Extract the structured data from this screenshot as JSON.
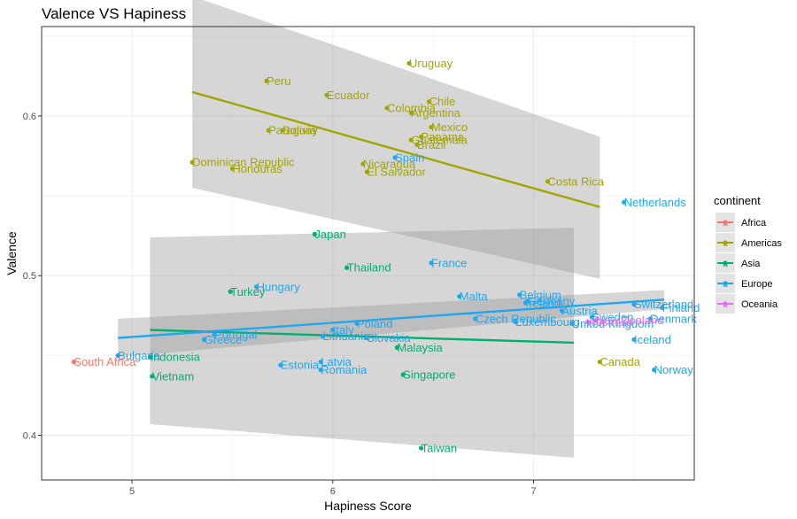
{
  "chart_data": {
    "type": "scatter",
    "title": "Valence VS Hapiness",
    "xlabel": "Hapiness Score",
    "ylabel": "Valence",
    "xlim": [
      4.55,
      7.8
    ],
    "ylim": [
      0.372,
      0.656
    ],
    "x_ticks": [
      5,
      6,
      7
    ],
    "x_tick_labels": [
      "5",
      "6",
      "7"
    ],
    "y_ticks": [
      0.4,
      0.5,
      0.6
    ],
    "y_tick_labels": [
      "0.4",
      "0.5",
      "0.6"
    ],
    "grid": true,
    "legend": {
      "title": "continent",
      "placement": "right",
      "entries": [
        "Africa",
        "Americas",
        "Asia",
        "Europe",
        "Oceania"
      ]
    },
    "colors": {
      "Africa": "#F8766D",
      "Americas": "#A3A500",
      "Asia": "#00B06F",
      "Europe": "#1FA7F0",
      "Oceania": "#E76BF3",
      "ribbon": "#999999",
      "panel_border": "#333333",
      "grid_major": "#ebebeb"
    },
    "points": [
      {
        "label": "South Africa",
        "continent": "Africa",
        "x": 4.71,
        "y": 0.446
      },
      {
        "label": "Uruguay",
        "continent": "Americas",
        "x": 6.38,
        "y": 0.633
      },
      {
        "label": "Peru",
        "continent": "Americas",
        "x": 5.67,
        "y": 0.622
      },
      {
        "label": "Ecuador",
        "continent": "Americas",
        "x": 5.97,
        "y": 0.613
      },
      {
        "label": "Chile",
        "continent": "Americas",
        "x": 6.48,
        "y": 0.609
      },
      {
        "label": "Colombia",
        "continent": "Americas",
        "x": 6.27,
        "y": 0.605
      },
      {
        "label": "Argentina",
        "continent": "Americas",
        "x": 6.39,
        "y": 0.602
      },
      {
        "label": "Mexico",
        "continent": "Americas",
        "x": 6.49,
        "y": 0.593
      },
      {
        "label": "Paraguay",
        "continent": "Americas",
        "x": 5.68,
        "y": 0.591
      },
      {
        "label": "Bolivia",
        "continent": "Americas",
        "x": 5.75,
        "y": 0.591
      },
      {
        "label": "Panama",
        "continent": "Americas",
        "x": 6.44,
        "y": 0.587
      },
      {
        "label": "Guatemala",
        "continent": "Americas",
        "x": 6.39,
        "y": 0.585
      },
      {
        "label": "Brazil",
        "continent": "Americas",
        "x": 6.42,
        "y": 0.582
      },
      {
        "label": "Dominican Republic",
        "continent": "Americas",
        "x": 5.3,
        "y": 0.571
      },
      {
        "label": "Honduras",
        "continent": "Americas",
        "x": 5.5,
        "y": 0.567
      },
      {
        "label": "Nicaragua",
        "continent": "Americas",
        "x": 6.15,
        "y": 0.57
      },
      {
        "label": "El Salvador",
        "continent": "Americas",
        "x": 6.17,
        "y": 0.565
      },
      {
        "label": "Costa Rica",
        "continent": "Americas",
        "x": 7.07,
        "y": 0.559
      },
      {
        "label": "Canada",
        "continent": "Americas",
        "x": 7.33,
        "y": 0.446
      },
      {
        "label": "Japan",
        "continent": "Asia",
        "x": 5.91,
        "y": 0.526
      },
      {
        "label": "Thailand",
        "continent": "Asia",
        "x": 6.07,
        "y": 0.505
      },
      {
        "label": "Turkey",
        "continent": "Asia",
        "x": 5.49,
        "y": 0.49
      },
      {
        "label": "Indonesia",
        "continent": "Asia",
        "x": 5.09,
        "y": 0.449
      },
      {
        "label": "Vietnam",
        "continent": "Asia",
        "x": 5.1,
        "y": 0.437
      },
      {
        "label": "Malaysia",
        "continent": "Asia",
        "x": 6.32,
        "y": 0.455
      },
      {
        "label": "Singapore",
        "continent": "Asia",
        "x": 6.35,
        "y": 0.438
      },
      {
        "label": "Taiwan",
        "continent": "Asia",
        "x": 6.44,
        "y": 0.392
      },
      {
        "label": "Netherlands",
        "continent": "Europe",
        "x": 7.45,
        "y": 0.546
      },
      {
        "label": "Spain",
        "continent": "Europe",
        "x": 6.31,
        "y": 0.574
      },
      {
        "label": "France",
        "continent": "Europe",
        "x": 6.49,
        "y": 0.508
      },
      {
        "label": "Hungary",
        "continent": "Europe",
        "x": 5.62,
        "y": 0.493
      },
      {
        "label": "Malta",
        "continent": "Europe",
        "x": 6.63,
        "y": 0.487
      },
      {
        "label": "Belgium",
        "continent": "Europe",
        "x": 6.93,
        "y": 0.488
      },
      {
        "label": "Ireland",
        "continent": "Europe",
        "x": 6.96,
        "y": 0.483
      },
      {
        "label": "Germany",
        "continent": "Europe",
        "x": 6.97,
        "y": 0.484
      },
      {
        "label": "Austria",
        "continent": "Europe",
        "x": 7.14,
        "y": 0.478
      },
      {
        "label": "Sweden",
        "continent": "Europe",
        "x": 7.29,
        "y": 0.474
      },
      {
        "label": "Switzerland",
        "continent": "Europe",
        "x": 7.5,
        "y": 0.482
      },
      {
        "label": "Finland",
        "continent": "Europe",
        "x": 7.64,
        "y": 0.48
      },
      {
        "label": "Denmark",
        "continent": "Europe",
        "x": 7.58,
        "y": 0.473
      },
      {
        "label": "Norway",
        "continent": "Europe",
        "x": 7.6,
        "y": 0.441
      },
      {
        "label": "Iceland",
        "continent": "Europe",
        "x": 7.5,
        "y": 0.46
      },
      {
        "label": "Czech Republic",
        "continent": "Europe",
        "x": 6.71,
        "y": 0.473
      },
      {
        "label": "Luxembourg",
        "continent": "Europe",
        "x": 6.91,
        "y": 0.471
      },
      {
        "label": "Poland",
        "continent": "Europe",
        "x": 6.12,
        "y": 0.47
      },
      {
        "label": "Italy",
        "continent": "Europe",
        "x": 6.0,
        "y": 0.466
      },
      {
        "label": "Lithuania",
        "continent": "Europe",
        "x": 5.95,
        "y": 0.462
      },
      {
        "label": "Slovakia",
        "continent": "Europe",
        "x": 6.17,
        "y": 0.461
      },
      {
        "label": "Portugal",
        "continent": "Europe",
        "x": 5.41,
        "y": 0.463
      },
      {
        "label": "Greece",
        "continent": "Europe",
        "x": 5.36,
        "y": 0.46
      },
      {
        "label": "Bulgaria",
        "continent": "Europe",
        "x": 4.93,
        "y": 0.45
      },
      {
        "label": "Estonia",
        "continent": "Europe",
        "x": 5.74,
        "y": 0.444
      },
      {
        "label": "Latvia",
        "continent": "Europe",
        "x": 5.94,
        "y": 0.446
      },
      {
        "label": "Romania",
        "continent": "Europe",
        "x": 5.94,
        "y": 0.441
      },
      {
        "label": "United Kingdom",
        "continent": "Europe",
        "x": 7.19,
        "y": 0.47
      },
      {
        "label": "New Zealand",
        "continent": "Oceania",
        "x": 7.31,
        "y": 0.472
      },
      {
        "label": "Australia",
        "continent": "Oceania",
        "x": 7.27,
        "y": 0.471
      }
    ],
    "fits": [
      {
        "continent": "Americas",
        "x": [
          5.3,
          7.33
        ],
        "y": [
          0.615,
          0.543
        ],
        "band_lo": [
          0.555,
          0.498
        ],
        "band_hi": [
          0.675,
          0.587
        ]
      },
      {
        "continent": "Asia",
        "x": [
          5.09,
          7.2
        ],
        "y": [
          0.466,
          0.458
        ],
        "band_lo": [
          0.407,
          0.386
        ],
        "band_hi": [
          0.524,
          0.53
        ]
      },
      {
        "continent": "Europe",
        "x": [
          4.93,
          7.65
        ],
        "y": [
          0.461,
          0.485
        ],
        "band_lo": [
          0.449,
          0.479
        ],
        "band_hi": [
          0.473,
          0.491
        ]
      }
    ]
  }
}
